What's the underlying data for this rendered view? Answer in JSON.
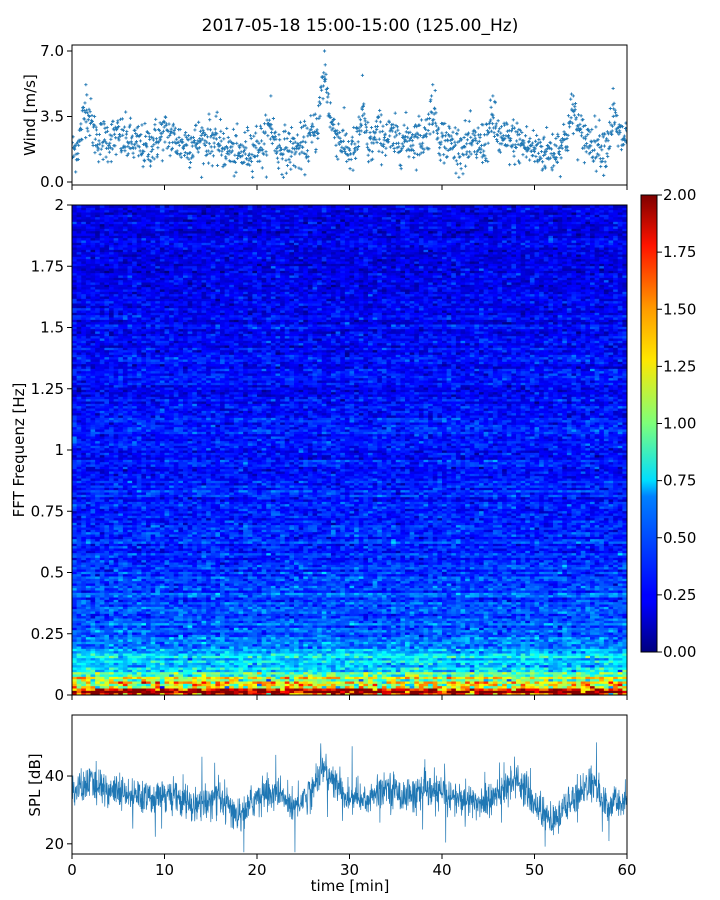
{
  "figure": {
    "title": "2017-05-18 15:00-15:00 (125.00_Hz)"
  },
  "chart_data": [
    {
      "type": "scatter",
      "name": "wind-panel",
      "ylabel": "Wind [m/s]",
      "xlim": [
        0,
        60
      ],
      "ylim": [
        0,
        7.0
      ],
      "yticks": [
        0.0,
        3.5,
        7.0
      ],
      "ytick_labels": [
        "0.0",
        "3.5",
        "7.0"
      ],
      "marker_color": "#1f77b4",
      "marker": "+",
      "mean_profile": {
        "x": [
          0,
          2,
          3,
          5,
          8,
          10,
          12,
          15,
          18,
          20,
          22,
          25,
          27,
          28,
          30,
          32,
          33,
          35,
          38,
          40,
          42,
          45,
          48,
          50,
          52,
          54,
          56,
          58,
          60
        ],
        "y": [
          1.5,
          2.8,
          2.2,
          2.4,
          1.8,
          2.6,
          2.0,
          2.3,
          1.4,
          2.0,
          1.7,
          1.8,
          3.2,
          3.0,
          1.6,
          1.6,
          2.6,
          2.2,
          2.4,
          2.3,
          1.8,
          2.1,
          2.2,
          1.7,
          1.6,
          2.6,
          2.2,
          1.8,
          2.5
        ]
      },
      "peaks": [
        {
          "x": 1.5,
          "y": 5.2
        },
        {
          "x": 21.5,
          "y": 4.6
        },
        {
          "x": 27.3,
          "y": 7.0
        },
        {
          "x": 31.4,
          "y": 5.7
        },
        {
          "x": 39.0,
          "y": 5.2
        },
        {
          "x": 45.5,
          "y": 4.6
        },
        {
          "x": 54.2,
          "y": 4.6
        },
        {
          "x": 58.5,
          "y": 5.0
        }
      ]
    },
    {
      "type": "heatmap",
      "name": "spectrogram-panel",
      "ylabel": "FFT Frequenz [Hz]",
      "xlim": [
        0,
        60
      ],
      "ylim": [
        0,
        2
      ],
      "yticks": [
        0,
        0.25,
        0.5,
        0.75,
        1,
        1.25,
        1.5,
        1.75,
        2
      ],
      "ytick_labels": [
        "0",
        "0.25",
        "0.5",
        "0.75",
        "1",
        "1.25",
        "1.5",
        "1.75",
        "2"
      ],
      "colormap": "jet",
      "colorbar": {
        "range": [
          0.0,
          2.0
        ],
        "ticks": [
          0.0,
          0.25,
          0.5,
          0.75,
          1.0,
          1.25,
          1.5,
          1.75,
          2.0
        ],
        "tick_labels": [
          "0.00",
          "0.25",
          "0.50",
          "0.75",
          "1.00",
          "1.25",
          "1.50",
          "1.75",
          "2.00"
        ]
      },
      "background_level": 0.22,
      "low_freq_profile": [
        {
          "f": 0.02,
          "level": 1.7
        },
        {
          "f": 0.05,
          "level": 1.2
        },
        {
          "f": 0.1,
          "level": 0.85
        },
        {
          "f": 0.2,
          "level": 0.55
        },
        {
          "f": 0.3,
          "level": 0.42
        },
        {
          "f": 0.5,
          "level": 0.35
        },
        {
          "f": 1.0,
          "level": 0.28
        },
        {
          "f": 2.0,
          "level": 0.2
        }
      ]
    },
    {
      "type": "line",
      "name": "spl-panel",
      "ylabel": "SPL [dB]",
      "xlabel": "time [min]",
      "xlim": [
        0,
        60
      ],
      "ylim": [
        17,
        58
      ],
      "xticks": [
        0,
        10,
        20,
        30,
        40,
        50,
        60
      ],
      "xtick_labels": [
        "0",
        "10",
        "20",
        "30",
        "40",
        "50",
        "60"
      ],
      "yticks": [
        20,
        40
      ],
      "ytick_labels": [
        "20",
        "40"
      ],
      "line_color": "#1f77b4",
      "mean_profile": {
        "x": [
          0,
          2,
          4,
          6,
          8,
          10,
          12,
          14,
          16,
          18,
          20,
          22,
          24,
          26,
          27,
          28,
          30,
          32,
          34,
          36,
          38,
          40,
          42,
          44,
          46,
          48,
          50,
          52,
          54,
          56,
          58,
          60
        ],
        "y": [
          35,
          38,
          36,
          34,
          33,
          35,
          32,
          32,
          33,
          28,
          34,
          35,
          31,
          36,
          43,
          39,
          33,
          33,
          37,
          34,
          35,
          35,
          33,
          32,
          34,
          40,
          32,
          26,
          33,
          38,
          31,
          33
        ]
      }
    }
  ]
}
